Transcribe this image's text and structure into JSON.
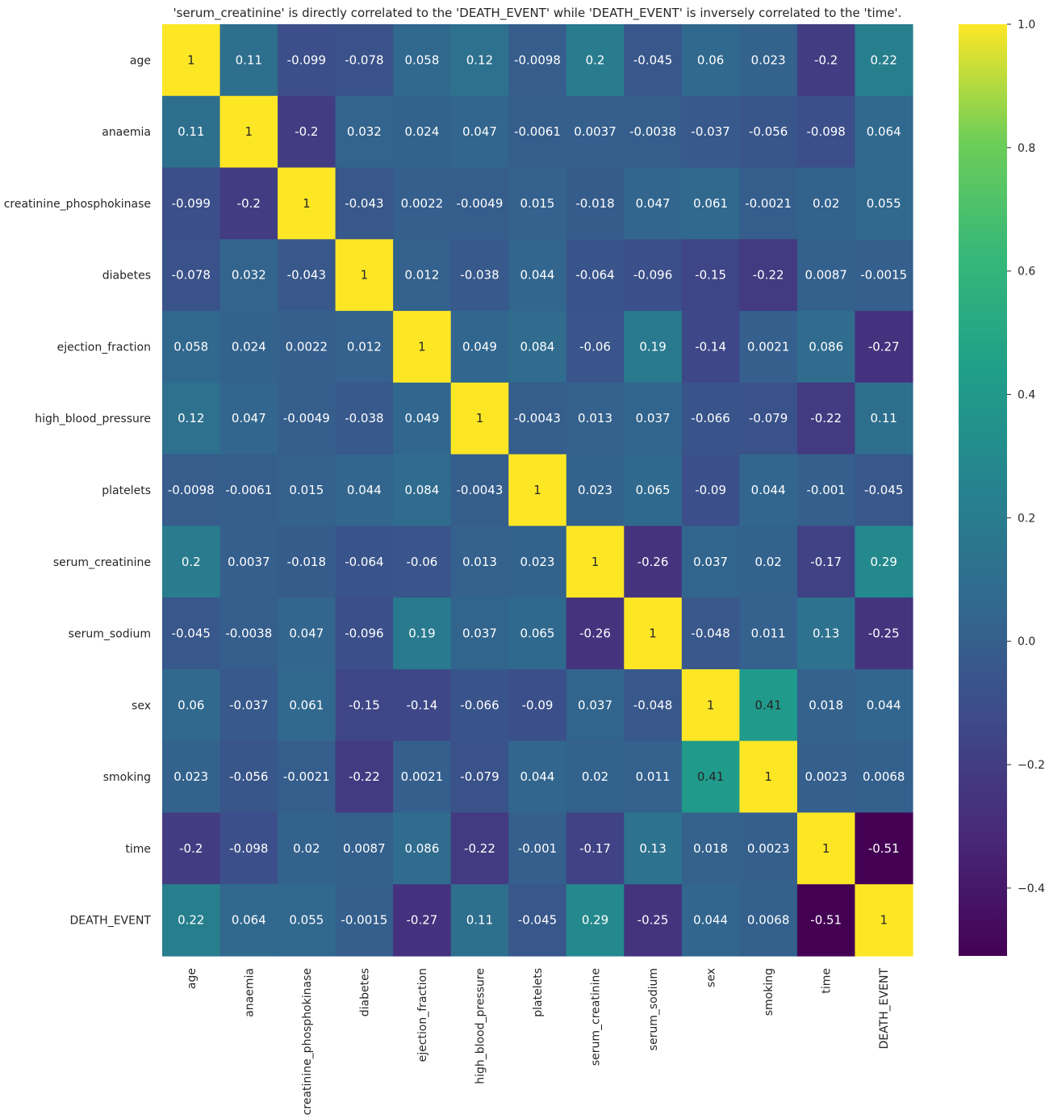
{
  "chart_data": {
    "type": "heatmap",
    "title": "'serum_creatinine' is directly correlated to the 'DEATH_EVENT' while 'DEATH_EVENT' is inversely correlated to the 'time'.",
    "labels": [
      "age",
      "anaemia",
      "creatinine_phosphokinase",
      "diabetes",
      "ejection_fraction",
      "high_blood_pressure",
      "platelets",
      "serum_creatinine",
      "serum_sodium",
      "sex",
      "smoking",
      "time",
      "DEATH_EVENT"
    ],
    "values": [
      [
        1,
        0.11,
        -0.099,
        -0.078,
        0.058,
        0.12,
        -0.0098,
        0.2,
        -0.045,
        0.06,
        0.023,
        -0.2,
        0.22
      ],
      [
        0.11,
        1,
        -0.2,
        0.032,
        0.024,
        0.047,
        -0.0061,
        0.0037,
        -0.0038,
        -0.037,
        -0.056,
        -0.098,
        0.064
      ],
      [
        -0.099,
        -0.2,
        1,
        -0.043,
        0.0022,
        -0.0049,
        0.015,
        -0.018,
        0.047,
        0.061,
        -0.0021,
        0.02,
        0.055
      ],
      [
        -0.078,
        0.032,
        -0.043,
        1,
        0.012,
        -0.038,
        0.044,
        -0.064,
        -0.096,
        -0.15,
        -0.22,
        0.0087,
        -0.0015
      ],
      [
        0.058,
        0.024,
        0.0022,
        0.012,
        1,
        0.049,
        0.084,
        -0.06,
        0.19,
        -0.14,
        0.0021,
        0.086,
        -0.27
      ],
      [
        0.12,
        0.047,
        -0.0049,
        -0.038,
        0.049,
        1,
        -0.0043,
        0.013,
        0.037,
        -0.066,
        -0.079,
        -0.22,
        0.11
      ],
      [
        -0.0098,
        -0.0061,
        0.015,
        0.044,
        0.084,
        -0.0043,
        1,
        0.023,
        0.065,
        -0.09,
        0.044,
        -0.001,
        -0.045
      ],
      [
        0.2,
        0.0037,
        -0.018,
        -0.064,
        -0.06,
        0.013,
        0.023,
        1,
        -0.26,
        0.037,
        0.02,
        -0.17,
        0.29
      ],
      [
        -0.045,
        -0.0038,
        0.047,
        -0.096,
        0.19,
        0.037,
        0.065,
        -0.26,
        1,
        -0.048,
        0.011,
        0.13,
        -0.25
      ],
      [
        0.06,
        -0.037,
        0.061,
        -0.15,
        -0.14,
        -0.066,
        -0.09,
        0.037,
        -0.048,
        1,
        0.41,
        0.018,
        0.044
      ],
      [
        0.023,
        -0.056,
        -0.0021,
        -0.22,
        0.0021,
        -0.079,
        0.044,
        0.02,
        0.011,
        0.41,
        1,
        0.0023,
        0.0068
      ],
      [
        -0.2,
        -0.098,
        0.02,
        0.0087,
        0.086,
        -0.22,
        -0.001,
        -0.17,
        0.13,
        0.018,
        0.0023,
        1,
        -0.51
      ],
      [
        0.22,
        0.064,
        0.055,
        -0.0015,
        -0.27,
        0.11,
        -0.045,
        0.29,
        -0.25,
        0.044,
        0.0068,
        -0.51,
        1
      ]
    ],
    "colormap": "viridis",
    "vmin": -0.51,
    "vmax": 1,
    "colorbar_ticks": [
      "1.0",
      "0.8",
      "0.6",
      "0.4",
      "0.2",
      "0.0",
      "−0.2",
      "−0.4"
    ],
    "colorbar_tick_values": [
      1.0,
      0.8,
      0.6,
      0.4,
      0.2,
      0.0,
      -0.2,
      -0.4
    ],
    "annotations": true,
    "grid": false
  }
}
